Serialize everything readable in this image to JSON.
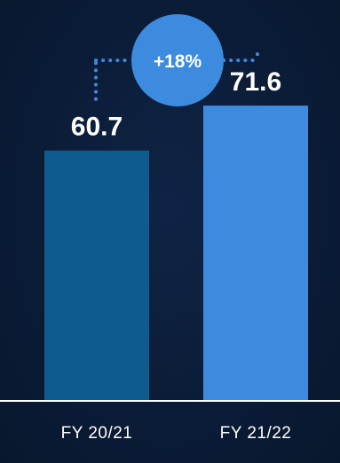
{
  "chart_data": {
    "type": "bar",
    "categories": [
      "FY 20/21",
      "FY 21/22"
    ],
    "values": [
      60.7,
      71.6
    ],
    "value_labels": [
      "60.7",
      "71.6"
    ],
    "ylim": [
      0,
      100
    ],
    "grid": false,
    "annotation": {
      "label": "+18%",
      "connects": [
        "FY 20/21",
        "FY 21/22"
      ]
    },
    "colors": {
      "background": "#0b1c37",
      "bars": [
        "#0f5a8f",
        "#3c8bdf"
      ],
      "badge": "#3c8bdf",
      "connector": "#3c8bdf",
      "baseline": "#ffffff",
      "text": "#ffffff"
    }
  }
}
